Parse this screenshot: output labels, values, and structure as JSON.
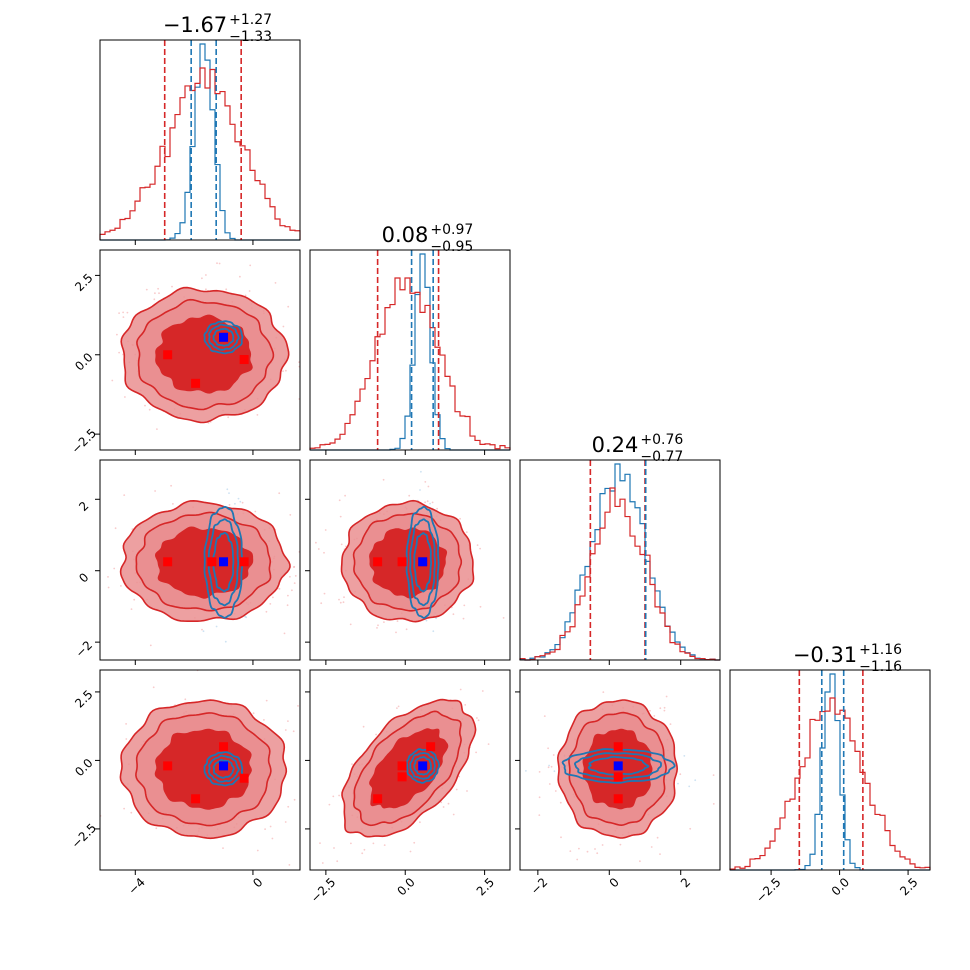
{
  "chart_data": {
    "type": "corner",
    "colors": {
      "red": "#d62728",
      "red_mid": "#ea8f91",
      "blue": "#1f77b4",
      "marker_red": "#ff0000",
      "marker_blue": "#0000ff"
    },
    "params": [
      {
        "median": -1.67,
        "plus": 1.27,
        "minus": 1.33,
        "title_main": "−1.67",
        "title_sup": "+1.27",
        "title_sub": "−1.33",
        "range": [
          -5.2,
          1.6
        ],
        "ticks": [
          -4,
          0
        ],
        "tick_labels": [
          "−4",
          "0"
        ],
        "red_lines": [
          -3.0,
          -0.4
        ],
        "blue_lines": [
          -2.1,
          -1.25
        ],
        "red_sigma": 1.3,
        "blue_sigma": 0.32,
        "blue_center": -1.67
      },
      {
        "median": 0.08,
        "plus": 0.97,
        "minus": 0.95,
        "title_main": "0.08",
        "title_sup": "+0.97",
        "title_sub": "−0.95",
        "range": [
          -3.0,
          3.3
        ],
        "ticks": [
          -2.5,
          0.0,
          2.5
        ],
        "tick_labels": [
          "−2.5",
          "0.0",
          "2.5"
        ],
        "red_lines": [
          -0.87,
          1.05
        ],
        "blue_lines": [
          0.2,
          0.88
        ],
        "red_sigma": 0.96,
        "blue_sigma": 0.25,
        "blue_center": 0.55
      },
      {
        "median": 0.24,
        "plus": 0.76,
        "minus": 0.77,
        "title_main": "0.24",
        "title_sup": "+0.76",
        "title_sub": "−0.77",
        "range": [
          -2.5,
          3.1
        ],
        "ticks": [
          -2,
          0,
          2
        ],
        "tick_labels": [
          "−2",
          "0",
          "2"
        ],
        "red_lines": [
          -0.53,
          1.0
        ],
        "blue_lines": [
          1.02
        ],
        "red_sigma": 0.77,
        "blue_sigma": 0.77,
        "blue_center": 0.24
      },
      {
        "median": -0.31,
        "plus": 1.16,
        "minus": 1.16,
        "title_main": "−0.31",
        "title_sup": "+1.16",
        "title_sub": "−1.16",
        "range": [
          -4.0,
          3.3
        ],
        "ticks": [
          -2.5,
          0.0,
          2.5
        ],
        "tick_labels": [
          "−2.5",
          "0.0",
          "2.5"
        ],
        "red_lines": [
          -1.47,
          0.85
        ],
        "blue_lines": [
          -0.65,
          0.15
        ],
        "red_sigma": 1.16,
        "blue_sigma": 0.3,
        "blue_center": -0.31
      }
    ],
    "pairs": [
      {
        "row": 1,
        "col": 0,
        "red_center": [
          -1.67,
          0.0
        ],
        "red_sigma": [
          1.3,
          0.96
        ],
        "red_rho": 0.0,
        "blue_center": [
          -1.0,
          0.55
        ],
        "blue_sigma": [
          0.32,
          0.25
        ],
        "red_markers": [
          [
            -2.9,
            0.0
          ],
          [
            -1.0,
            0.55
          ],
          [
            -0.3,
            -0.15
          ],
          [
            -1.95,
            -0.9
          ]
        ],
        "blue_marker": [
          -1.0,
          0.55
        ]
      },
      {
        "row": 2,
        "col": 0,
        "red_center": [
          -1.67,
          0.24
        ],
        "red_sigma": [
          1.3,
          0.77
        ],
        "red_rho": 0.0,
        "blue_center": [
          -1.0,
          0.24
        ],
        "blue_sigma": [
          0.32,
          0.77
        ],
        "red_markers": [
          [
            -2.9,
            0.25
          ],
          [
            -1.4,
            0.25
          ],
          [
            -0.3,
            0.25
          ]
        ],
        "blue_marker": [
          -1.0,
          0.25
        ]
      },
      {
        "row": 2,
        "col": 1,
        "red_center": [
          0.08,
          0.24
        ],
        "red_sigma": [
          0.96,
          0.77
        ],
        "red_rho": 0.0,
        "blue_center": [
          0.55,
          0.24
        ],
        "blue_sigma": [
          0.25,
          0.77
        ],
        "red_markers": [
          [
            -0.87,
            0.25
          ],
          [
            -0.1,
            0.25
          ],
          [
            0.55,
            0.25
          ]
        ],
        "blue_marker": [
          0.55,
          0.25
        ]
      },
      {
        "row": 3,
        "col": 0,
        "red_center": [
          -1.67,
          -0.31
        ],
        "red_sigma": [
          1.3,
          1.16
        ],
        "red_rho": 0.0,
        "blue_center": [
          -1.0,
          -0.31
        ],
        "blue_sigma": [
          0.32,
          0.3
        ],
        "red_markers": [
          [
            -2.9,
            -0.2
          ],
          [
            -1.0,
            0.5
          ],
          [
            -0.3,
            -0.65
          ],
          [
            -1.95,
            -1.4
          ]
        ],
        "blue_marker": [
          -1.0,
          -0.2
        ]
      },
      {
        "row": 3,
        "col": 1,
        "red_center": [
          0.08,
          -0.31
        ],
        "red_sigma": [
          0.96,
          1.16
        ],
        "red_rho": 0.55,
        "blue_center": [
          0.55,
          -0.2
        ],
        "blue_sigma": [
          0.25,
          0.3
        ],
        "red_markers": [
          [
            -0.87,
            -1.4
          ],
          [
            -0.1,
            -0.2
          ],
          [
            0.8,
            0.5
          ],
          [
            -0.1,
            -0.6
          ]
        ],
        "blue_marker": [
          0.55,
          -0.2
        ]
      },
      {
        "row": 3,
        "col": 2,
        "red_center": [
          0.24,
          -0.31
        ],
        "red_sigma": [
          0.77,
          1.16
        ],
        "red_rho": 0.0,
        "blue_center": [
          0.24,
          -0.2
        ],
        "blue_sigma": [
          0.77,
          0.3
        ],
        "red_markers": [
          [
            0.25,
            0.5
          ],
          [
            0.25,
            -0.6
          ],
          [
            0.25,
            -1.4
          ]
        ],
        "blue_marker": [
          0.25,
          -0.2
        ]
      }
    ]
  }
}
